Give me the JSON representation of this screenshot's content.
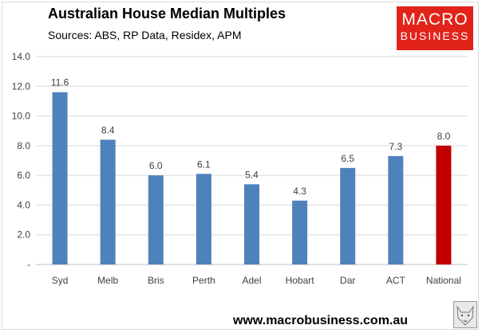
{
  "header": {
    "title": "Australian House Median Multiples",
    "subtitle": "Sources: ABS, RP Data, Residex, APM"
  },
  "logo": {
    "line1": "MACRO",
    "line2": "BUSINESS"
  },
  "footer": {
    "url": "www.macrobusiness.com.au"
  },
  "colors": {
    "bar": "#4f81bd",
    "highlight": "#c00000",
    "grid": "#d9d9d9",
    "logo": "#e2231a"
  },
  "chart_data": {
    "type": "bar",
    "categories": [
      "Syd",
      "Melb",
      "Bris",
      "Perth",
      "Adel",
      "Hobart",
      "Dar",
      "ACT",
      "National"
    ],
    "values": [
      11.6,
      8.4,
      6.0,
      6.1,
      5.4,
      4.3,
      6.5,
      7.3,
      8.0
    ],
    "highlight": "National",
    "ylim": [
      0,
      14
    ],
    "yticks": [
      {
        "value": 0,
        "label": "-"
      },
      {
        "value": 2,
        "label": "2.0"
      },
      {
        "value": 4,
        "label": "4.0"
      },
      {
        "value": 6,
        "label": "6.0"
      },
      {
        "value": 8,
        "label": "8.0"
      },
      {
        "value": 10,
        "label": "10.0"
      },
      {
        "value": 12,
        "label": "12.0"
      },
      {
        "value": 14,
        "label": "14.0"
      }
    ],
    "data_labels": [
      "11.6",
      "8.4",
      "6.0",
      "6.1",
      "5.4",
      "4.3",
      "6.5",
      "7.3",
      "8.0"
    ],
    "grid": true,
    "legend": "none"
  }
}
